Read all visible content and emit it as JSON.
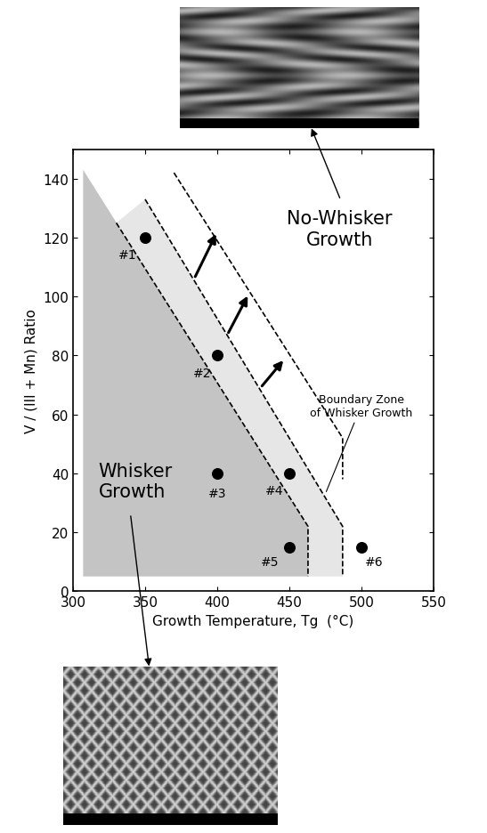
{
  "chart_data": {
    "type": "scatter",
    "x_label": "Growth Temperature, Tg  (°C)",
    "y_label": "V / (III + Mn) Ratio",
    "xlim": [
      300,
      550
    ],
    "xticks": [
      300,
      350,
      400,
      450,
      500,
      550
    ],
    "ylim": [
      0,
      150
    ],
    "yticks": [
      0,
      20,
      40,
      60,
      80,
      100,
      120,
      140
    ],
    "x": [
      350,
      400,
      400,
      450,
      450,
      500
    ],
    "values": [
      120,
      80,
      40,
      40,
      15,
      15
    ],
    "labels": [
      "#1",
      "#2",
      "#3",
      "#4",
      "#5",
      "#6"
    ],
    "color": "#000000",
    "marker": "circle",
    "regions": [
      {
        "name": "Whisker\nGrowth",
        "color": "#c4c4c4",
        "x": [
          307,
          463,
          463,
          307
        ],
        "y": [
          143,
          22,
          5,
          5
        ]
      },
      {
        "name": "Boundary Zone\nof Whisker Growth",
        "color": "#e6e6e6",
        "x": [
          330,
          350,
          487,
          487,
          463,
          463
        ],
        "y": [
          125,
          133,
          22,
          5,
          5,
          22
        ]
      }
    ],
    "boundaries": [
      {
        "x": [
          330,
          463,
          463
        ],
        "y": [
          125,
          22,
          5
        ]
      },
      {
        "x": [
          350,
          487,
          487
        ],
        "y": [
          133,
          22,
          5
        ]
      },
      {
        "x": [
          370,
          487,
          487
        ],
        "y": [
          142,
          52,
          38
        ]
      }
    ],
    "line_style": "dashed",
    "arrows": [
      {
        "x": [
          384,
          400
        ],
        "y": [
          106,
          122
        ]
      },
      {
        "x": [
          407,
          422
        ],
        "y": [
          87,
          101
        ]
      },
      {
        "x": [
          430,
          447
        ],
        "y": [
          69,
          79
        ]
      }
    ],
    "annotations": [
      "No-Whisker\nGrowth"
    ]
  }
}
